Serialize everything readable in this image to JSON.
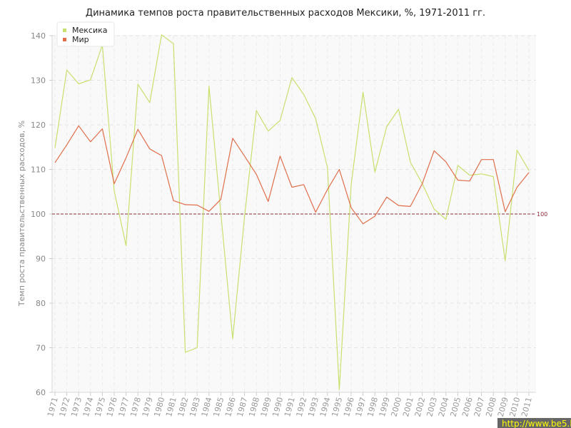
{
  "chart_data": {
    "type": "line",
    "title": "Динамика темпов роста правительственных расходов Мексики, %, 1971-2011 гг.",
    "ylabel": "Темп роста правительственных расходов, %",
    "xlabel": "",
    "ylim": [
      60,
      140
    ],
    "yticks": [
      60,
      70,
      80,
      90,
      100,
      110,
      120,
      130,
      140
    ],
    "grid": true,
    "legend_position": "top-left",
    "x": [
      1971,
      1972,
      1973,
      1974,
      1975,
      1976,
      1977,
      1978,
      1979,
      1980,
      1981,
      1982,
      1983,
      1984,
      1985,
      1986,
      1987,
      1988,
      1989,
      1990,
      1991,
      1992,
      1993,
      1994,
      1995,
      1996,
      1997,
      1998,
      1999,
      2000,
      2001,
      2002,
      2003,
      2004,
      2005,
      2006,
      2007,
      2008,
      2009,
      2010,
      2011
    ],
    "series": [
      {
        "name": "Мексика",
        "color": "#c8e06e",
        "values": [
          114.8,
          132.3,
          129.2,
          130.1,
          137.9,
          105.2,
          92.9,
          129.1,
          125.0,
          140.2,
          138.2,
          69.0,
          70.0,
          128.7,
          100.2,
          72.0,
          99.4,
          123.2,
          118.6,
          121.0,
          130.6,
          126.8,
          121.4,
          110.4,
          60.6,
          106.6,
          127.3,
          109.4,
          119.6,
          123.5,
          111.6,
          106.8,
          101.1,
          98.8,
          110.9,
          108.7,
          109.0,
          108.4,
          89.5,
          114.3,
          109.8
        ]
      },
      {
        "name": "Мир",
        "color": "#e06e4a",
        "values": [
          111.5,
          115.5,
          119.8,
          116.2,
          119.1,
          106.8,
          112.6,
          119.0,
          114.6,
          113.1,
          103.0,
          102.1,
          102.0,
          100.6,
          103.3,
          117.0,
          113.0,
          108.9,
          102.8,
          113.0,
          106.0,
          106.6,
          100.4,
          105.5,
          110.0,
          101.4,
          97.8,
          99.5,
          103.8,
          101.9,
          101.7,
          106.8,
          114.2,
          111.7,
          107.6,
          107.4,
          112.2,
          112.2,
          100.5,
          106.0,
          109.3
        ]
      }
    ],
    "reference_line": {
      "value": 100,
      "label": "100",
      "color": "#8a2a3a"
    }
  },
  "watermark": "http://www.be5.biz/"
}
